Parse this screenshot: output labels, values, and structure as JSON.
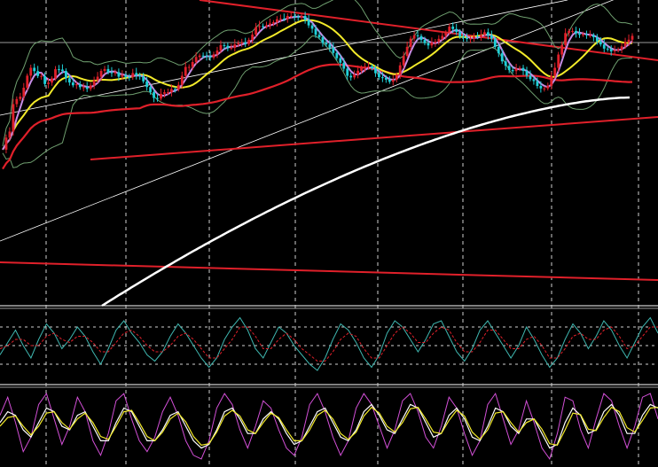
{
  "chart_data": [
    {
      "panel": "price",
      "type": "candlestick",
      "title": "",
      "xlabel": "",
      "ylabel": "",
      "x": [
        1,
        2,
        3,
        4,
        5,
        6,
        7,
        8,
        9,
        10,
        11,
        12,
        13,
        14,
        15,
        16,
        17,
        18,
        19,
        20,
        21,
        22,
        23,
        24,
        25,
        26,
        27,
        28,
        29,
        30,
        31,
        32,
        33,
        34,
        35,
        36,
        37,
        38,
        39,
        40,
        41,
        42,
        43,
        44,
        45,
        46,
        47,
        48,
        49,
        50,
        51,
        52,
        53,
        54,
        55,
        56,
        57,
        58,
        59,
        60,
        61,
        62,
        63,
        64,
        65,
        66,
        67,
        68,
        69,
        70,
        71,
        72,
        73,
        74,
        75,
        76,
        77,
        78,
        79,
        80,
        81,
        82,
        83,
        84,
        85,
        86,
        87,
        88,
        89,
        90,
        91,
        92,
        93,
        94,
        95,
        96,
        97,
        98,
        99,
        100,
        101,
        102,
        103,
        104,
        105,
        106,
        107,
        108,
        109,
        110,
        111,
        112,
        113,
        114,
        115,
        116,
        117,
        118,
        119,
        120,
        121,
        122,
        123,
        124,
        125,
        126,
        127,
        128,
        129,
        130,
        131,
        132,
        133,
        134,
        135,
        136,
        137,
        138,
        139,
        140,
        141,
        142,
        143,
        144,
        145,
        146,
        147,
        148,
        149,
        150,
        151,
        152,
        153,
        154,
        155,
        156,
        157,
        158,
        159,
        160,
        161,
        162,
        163,
        164,
        165,
        166,
        167,
        168,
        169,
        170,
        171,
        172,
        173,
        174,
        175,
        176,
        177,
        178,
        179,
        180
      ],
      "close": [
        0.234,
        0.303,
        0.338,
        0.495,
        0.524,
        0.538,
        0.589,
        0.658,
        0.703,
        0.684,
        0.656,
        0.656,
        0.61,
        0.618,
        0.642,
        0.695,
        0.693,
        0.685,
        0.643,
        0.619,
        0.603,
        0.609,
        0.592,
        0.592,
        0.582,
        0.602,
        0.631,
        0.652,
        0.685,
        0.696,
        0.677,
        0.672,
        0.678,
        0.652,
        0.662,
        0.65,
        0.649,
        0.673,
        0.66,
        0.653,
        0.625,
        0.593,
        0.564,
        0.53,
        0.527,
        0.554,
        0.563,
        0.563,
        0.581,
        0.579,
        0.605,
        0.657,
        0.708,
        0.708,
        0.736,
        0.765,
        0.773,
        0.771,
        0.769,
        0.761,
        0.78,
        0.802,
        0.833,
        0.829,
        0.816,
        0.817,
        0.837,
        0.845,
        0.848,
        0.84,
        0.863,
        0.893,
        0.936,
        0.942,
        0.939,
        0.946,
        0.957,
        0.964,
        0.981,
        0.984,
        0.982,
        1.0,
        1.0,
        0.996,
        0.99,
        1.0,
        0.977,
        0.946,
        0.927,
        0.892,
        0.878,
        0.845,
        0.837,
        0.818,
        0.788,
        0.758,
        0.732,
        0.698,
        0.657,
        0.648,
        0.664,
        0.686,
        0.702,
        0.71,
        0.711,
        0.7,
        0.672,
        0.649,
        0.645,
        0.635,
        0.623,
        0.634,
        0.664,
        0.717,
        0.771,
        0.823,
        0.87,
        0.889,
        0.885,
        0.863,
        0.844,
        0.831,
        0.847,
        0.853,
        0.869,
        0.886,
        0.906,
        0.939,
        0.925,
        0.909,
        0.881,
        0.874,
        0.868,
        0.871,
        0.884,
        0.879,
        0.891,
        0.907,
        0.889,
        0.87,
        0.823,
        0.786,
        0.74,
        0.714,
        0.69,
        0.684,
        0.699,
        0.702,
        0.685,
        0.658,
        0.638,
        0.627,
        0.599,
        0.585,
        0.585,
        0.6,
        0.657,
        0.703,
        0.779,
        0.833,
        0.902,
        0.914,
        0.914,
        0.9,
        0.892,
        0.895,
        0.89,
        0.89,
        0.879,
        0.854,
        0.837,
        0.813,
        0.811,
        0.797,
        0.803,
        0.808,
        0.826,
        0.851,
        0.864,
        0.886
      ],
      "overlay_colors": {
        "ma_white": "#ffffff",
        "ma_red": "#e0202a",
        "ma_yellow": "#f2ea2a",
        "ma_violet": "#c78de6",
        "bands": "#6f9f6f",
        "trendlines": "#e0202a",
        "channel": "#ffffff",
        "up_candle": "#e0202a",
        "down_candle": "#1fd0d8"
      }
    },
    {
      "panel": "oscillator-1",
      "type": "line",
      "title": "",
      "series": [
        {
          "values": [
            0.35,
            0.55,
            0.75,
            0.5,
            0.3,
            0.6,
            0.85,
            0.7,
            0.45,
            0.6,
            0.8,
            0.65,
            0.4,
            0.2,
            0.45,
            0.75,
            0.9,
            0.7,
            0.55,
            0.35,
            0.25,
            0.4,
            0.65,
            0.85,
            0.7,
            0.5,
            0.3,
            0.15,
            0.3,
            0.6,
            0.8,
            0.95,
            0.75,
            0.45,
            0.3,
            0.55,
            0.8,
            0.7,
            0.5,
            0.35,
            0.2,
            0.1,
            0.3,
            0.6,
            0.85,
            0.75,
            0.55,
            0.3,
            0.15,
            0.35,
            0.7,
            0.9,
            0.8,
            0.6,
            0.4,
            0.6,
            0.85,
            0.9,
            0.65,
            0.4,
            0.25,
            0.45,
            0.75,
            0.9,
            0.7,
            0.5,
            0.3,
            0.5,
            0.8,
            0.6,
            0.35,
            0.15,
            0.3,
            0.6,
            0.85,
            0.7,
            0.45,
            0.65,
            0.9,
            0.75,
            0.5,
            0.3,
            0.55,
            0.8,
            0.95,
            0.7
          ]
        },
        {
          "values": [
            0.45,
            0.5,
            0.6,
            0.6,
            0.5,
            0.5,
            0.65,
            0.7,
            0.6,
            0.55,
            0.65,
            0.65,
            0.55,
            0.4,
            0.4,
            0.55,
            0.7,
            0.75,
            0.65,
            0.5,
            0.4,
            0.4,
            0.5,
            0.65,
            0.7,
            0.6,
            0.45,
            0.3,
            0.3,
            0.45,
            0.6,
            0.8,
            0.8,
            0.65,
            0.45,
            0.45,
            0.6,
            0.7,
            0.6,
            0.45,
            0.35,
            0.25,
            0.25,
            0.4,
            0.6,
            0.7,
            0.65,
            0.45,
            0.3,
            0.3,
            0.5,
            0.7,
            0.8,
            0.7,
            0.55,
            0.55,
            0.7,
            0.8,
            0.75,
            0.55,
            0.4,
            0.4,
            0.55,
            0.75,
            0.75,
            0.6,
            0.45,
            0.45,
            0.6,
            0.65,
            0.5,
            0.3,
            0.3,
            0.45,
            0.65,
            0.7,
            0.6,
            0.6,
            0.75,
            0.8,
            0.65,
            0.45,
            0.5,
            0.65,
            0.8,
            0.8
          ]
        }
      ],
      "series_colors": [
        "#3fb7b0",
        "#e0202a"
      ],
      "reference_levels": [
        0.2,
        0.5,
        0.8
      ]
    },
    {
      "panel": "oscillator-2",
      "type": "line",
      "title": "",
      "series": [
        {
          "values": [
            0.65,
            0.9,
            0.55,
            0.15,
            0.35,
            0.8,
            0.95,
            0.6,
            0.25,
            0.5,
            0.9,
            0.7,
            0.3,
            0.1,
            0.4,
            0.85,
            0.95,
            0.6,
            0.3,
            0.15,
            0.35,
            0.7,
            0.9,
            0.65,
            0.3,
            0.1,
            0.05,
            0.3,
            0.75,
            0.95,
            0.8,
            0.45,
            0.2,
            0.5,
            0.85,
            0.75,
            0.45,
            0.2,
            0.1,
            0.35,
            0.8,
            0.95,
            0.7,
            0.35,
            0.1,
            0.3,
            0.75,
            0.95,
            0.8,
            0.5,
            0.2,
            0.45,
            0.85,
            0.95,
            0.7,
            0.35,
            0.2,
            0.5,
            0.9,
            0.75,
            0.4,
            0.1,
            0.3,
            0.8,
            0.95,
            0.6,
            0.25,
            0.45,
            0.85,
            0.55,
            0.2,
            0.05,
            0.4,
            0.9,
            0.85,
            0.45,
            0.2,
            0.6,
            0.95,
            0.85,
            0.5,
            0.2,
            0.5,
            0.9,
            0.95,
            0.6
          ]
        },
        {
          "values": [
            0.55,
            0.7,
            0.65,
            0.45,
            0.35,
            0.55,
            0.75,
            0.7,
            0.5,
            0.45,
            0.65,
            0.7,
            0.5,
            0.3,
            0.3,
            0.55,
            0.75,
            0.7,
            0.5,
            0.3,
            0.3,
            0.45,
            0.65,
            0.7,
            0.5,
            0.3,
            0.2,
            0.25,
            0.45,
            0.7,
            0.75,
            0.6,
            0.4,
            0.4,
            0.6,
            0.7,
            0.6,
            0.4,
            0.25,
            0.3,
            0.5,
            0.7,
            0.75,
            0.55,
            0.35,
            0.3,
            0.45,
            0.7,
            0.8,
            0.65,
            0.45,
            0.4,
            0.6,
            0.8,
            0.75,
            0.55,
            0.35,
            0.4,
            0.65,
            0.75,
            0.6,
            0.35,
            0.3,
            0.5,
            0.75,
            0.7,
            0.5,
            0.4,
            0.6,
            0.6,
            0.4,
            0.2,
            0.25,
            0.55,
            0.75,
            0.65,
            0.4,
            0.45,
            0.7,
            0.8,
            0.65,
            0.4,
            0.4,
            0.65,
            0.8,
            0.75
          ]
        },
        {
          "values": [
            0.5,
            0.62,
            0.64,
            0.5,
            0.38,
            0.5,
            0.68,
            0.7,
            0.55,
            0.46,
            0.6,
            0.68,
            0.55,
            0.36,
            0.32,
            0.5,
            0.7,
            0.72,
            0.55,
            0.36,
            0.3,
            0.42,
            0.6,
            0.68,
            0.56,
            0.36,
            0.24,
            0.26,
            0.42,
            0.64,
            0.72,
            0.64,
            0.45,
            0.4,
            0.55,
            0.68,
            0.62,
            0.45,
            0.3,
            0.3,
            0.45,
            0.65,
            0.72,
            0.6,
            0.4,
            0.32,
            0.42,
            0.64,
            0.76,
            0.68,
            0.5,
            0.42,
            0.55,
            0.74,
            0.76,
            0.6,
            0.42,
            0.4,
            0.58,
            0.72,
            0.64,
            0.42,
            0.32,
            0.45,
            0.68,
            0.7,
            0.55,
            0.42,
            0.55,
            0.6,
            0.46,
            0.26,
            0.24,
            0.45,
            0.68,
            0.66,
            0.46,
            0.44,
            0.62,
            0.76,
            0.7,
            0.48,
            0.42,
            0.58,
            0.75,
            0.76
          ]
        }
      ],
      "series_colors": [
        "#d24fd6",
        "#ffffff",
        "#f2ea2a"
      ]
    }
  ]
}
